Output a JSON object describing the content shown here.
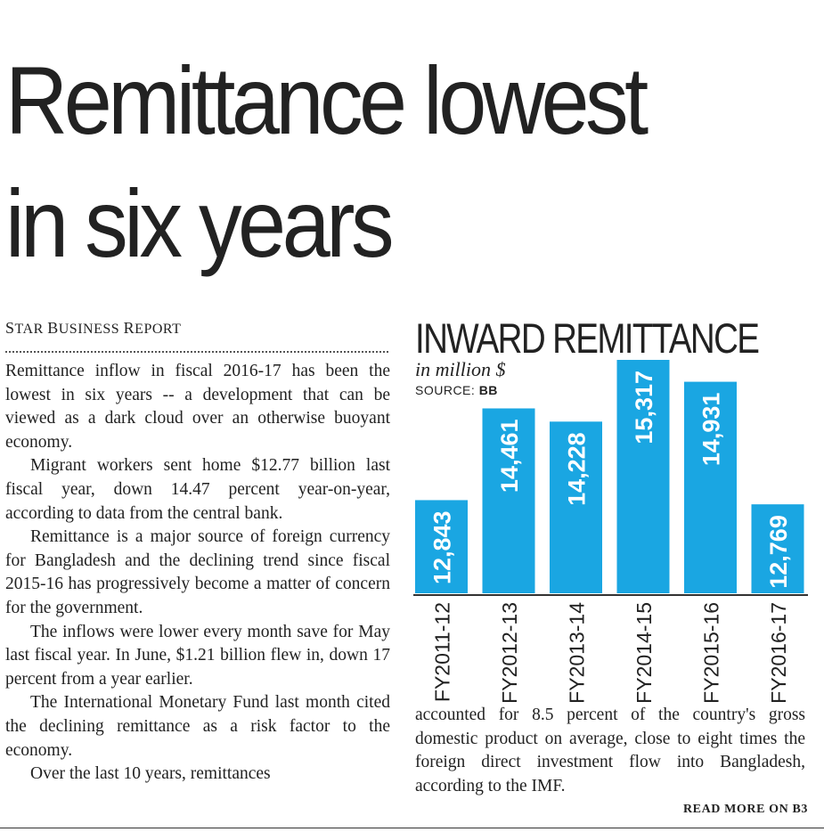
{
  "headline": [
    "Remittance lowest",
    "in six years"
  ],
  "byline": {
    "cap1": "S",
    "rest1": "TAR ",
    "cap2": "B",
    "rest2": "USINESS ",
    "cap3": "R",
    "rest3": "EPORT"
  },
  "article_left": [
    "Remittance inflow in fiscal 2016-17 has been the lowest in six years -- a development that can be viewed as a dark cloud over an otherwise buoyant economy.",
    "Migrant workers sent home $12.77 billion last fiscal year, down 14.47 percent year-on-year, according to data from the central bank.",
    "Remittance is a major source of foreign currency for Bangladesh and the declining trend since fiscal 2015-16 has progressively become a matter of concern for the government.",
    "The inflows were lower every month save for May last fiscal year. In June, $1.21 billion flew in, down 17 percent from a year earlier.",
    "The International Monetary Fund last month cited the declining remittance as a risk factor to the economy.",
    "Over the last 10 years, remittances"
  ],
  "article_right": "accounted for 8.5 percent of the country's gross domestic product on average, close to eight times the foreign direct investment flow into Bangladesh, according to the IMF.",
  "read_more": "READ MORE ON B3",
  "colors": {
    "bar": "#1aa6e2",
    "bar_label": "#ffffff",
    "text": "#222222"
  },
  "chart_data": {
    "type": "bar",
    "title": "INWARD REMITTANCE",
    "subtitle": "in million $",
    "source_label": "SOURCE:",
    "source_value": "BB",
    "categories": [
      "FY2011-12",
      "FY2012-13",
      "FY2013-14",
      "FY2014-15",
      "FY2015-16",
      "FY2016-17"
    ],
    "values": [
      12843,
      14461,
      14228,
      15317,
      14931,
      12769
    ],
    "value_labels": [
      "12,843",
      "14,461",
      "14,228",
      "15,317",
      "14,931",
      "12,769"
    ],
    "ylim": [
      11200,
      15317
    ],
    "grid": false,
    "legend": "none"
  }
}
